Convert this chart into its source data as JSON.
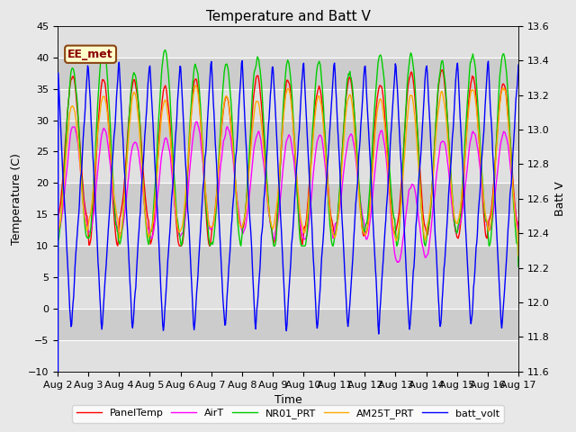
{
  "title": "Temperature and Batt V",
  "xlabel": "Time",
  "ylabel_left": "Temperature (C)",
  "ylabel_right": "Batt V",
  "ylim_left": [
    -10,
    45
  ],
  "ylim_right": [
    11.6,
    13.6
  ],
  "yticks_left": [
    -10,
    -5,
    0,
    5,
    10,
    15,
    20,
    25,
    30,
    35,
    40,
    45
  ],
  "yticks_right": [
    11.6,
    11.8,
    12.0,
    12.2,
    12.4,
    12.6,
    12.8,
    13.0,
    13.2,
    13.4,
    13.6
  ],
  "xtick_labels": [
    "Aug 2",
    "Aug 3",
    "Aug 4",
    "Aug 5",
    "Aug 6",
    "Aug 7",
    "Aug 8",
    "Aug 9",
    "Aug 10",
    "Aug 11",
    "Aug 12",
    "Aug 13",
    "Aug 14",
    "Aug 15",
    "Aug 16",
    "Aug 17"
  ],
  "annotation_text": "EE_met",
  "annotation_color": "#8B0000",
  "annotation_bg": "#ffffcc",
  "annotation_edge": "#8B4513",
  "legend_entries": [
    "PanelTemp",
    "AirT",
    "NR01_PRT",
    "AM25T_PRT",
    "batt_volt"
  ],
  "legend_colors": [
    "#ff0000",
    "#ff00ff",
    "#00cc00",
    "#ffaa00",
    "#0000ff"
  ],
  "fig_bg_color": "#e8e8e8",
  "plot_bg_color": "#d8d8d8",
  "band_color_dark": "#cccccc",
  "band_color_light": "#e0e0e0",
  "grid_color": "#ffffff",
  "title_fontsize": 11,
  "axis_fontsize": 9,
  "tick_fontsize": 8,
  "linewidth": 1.0
}
